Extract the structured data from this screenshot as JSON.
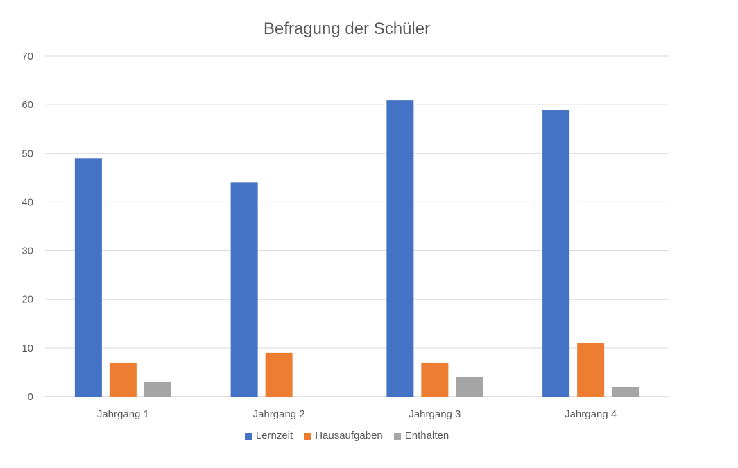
{
  "chart_data": {
    "type": "bar",
    "title": "Befragung der Schüler",
    "categories": [
      "Jahrgang 1",
      "Jahrgang 2",
      "Jahrgang 3",
      "Jahrgang 4"
    ],
    "series": [
      {
        "name": "Lernzeit",
        "color": "#4472C4",
        "values": [
          49,
          44,
          61,
          59
        ]
      },
      {
        "name": "Hausaufgaben",
        "color": "#ED7D31",
        "values": [
          7,
          9,
          7,
          11
        ]
      },
      {
        "name": "Enthalten",
        "color": "#A5A5A5",
        "values": [
          3,
          0,
          4,
          2
        ]
      }
    ],
    "xlabel": "",
    "ylabel": "",
    "ylim": [
      0,
      70
    ],
    "yticks": [
      "0",
      "10",
      "20",
      "30",
      "40",
      "50",
      "60",
      "70"
    ],
    "grid": true,
    "legend_position": "bottom"
  }
}
